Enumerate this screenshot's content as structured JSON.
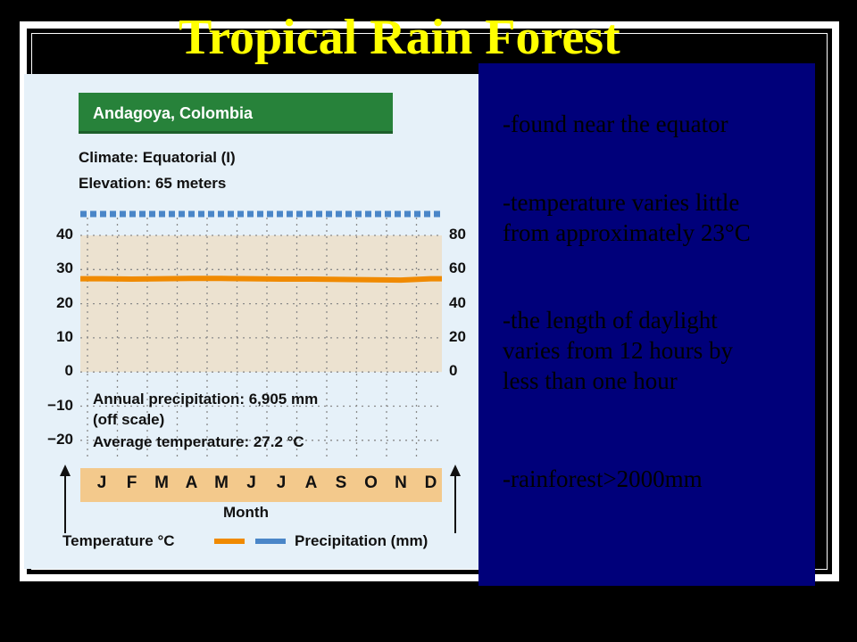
{
  "slide": {
    "title": "Tropical Rain Forest",
    "bullets": [
      [
        "-found near the equator"
      ],
      [
        "-temperature  varies  little",
        "from approximately  23°C"
      ],
      [
        "-the length of daylight",
        "varies  from 12 hours by",
        "less than one hour"
      ],
      [
        "-rainforest>2000mm"
      ]
    ]
  },
  "climograph": {
    "station": "Andagoya, Colombia",
    "climate": "Climate: Equatorial (I)",
    "elevation": "Elevation: 65 meters",
    "annual_precip": "Annual precipitation: 6,905 mm",
    "off_scale": "(off scale)",
    "avg_temp": "Average temperature: 27.2 °C",
    "xaxis_title": "Month",
    "legend_temp": "Temperature °C",
    "legend_precip": "Precipitation (mm)",
    "colors": {
      "temperature": "#f08a00",
      "precipitation": "#4a86c8",
      "header": "#27823a",
      "plot_bg": "#ece2d0"
    }
  },
  "chart_data": {
    "type": "line",
    "categories": [
      "J",
      "F",
      "M",
      "A",
      "M",
      "J",
      "J",
      "A",
      "S",
      "O",
      "N",
      "D"
    ],
    "series": [
      {
        "name": "Temperature °C",
        "axis": "left",
        "values": [
          27.3,
          27.2,
          27.3,
          27.4,
          27.4,
          27.3,
          27.2,
          27.2,
          27.1,
          27.0,
          26.9,
          27.3
        ]
      },
      {
        "name": "Precipitation (mm)",
        "axis": "right",
        "values": [
          100,
          100,
          100,
          100,
          100,
          100,
          100,
          100,
          100,
          100,
          100,
          100
        ],
        "note": "off scale"
      }
    ],
    "y_left_ticks": [
      "40",
      "30",
      "20",
      "10",
      "0",
      "−10",
      "−20"
    ],
    "y_right_ticks": [
      "80",
      "60",
      "40",
      "20",
      "0"
    ],
    "ylim_left": [
      -20,
      40
    ],
    "ylim_right": [
      0,
      80
    ],
    "xlabel": "Month",
    "ylabel_left": "Temperature °C",
    "ylabel_right": "Precipitation (mm)",
    "grid": true,
    "legend": "bottom"
  }
}
